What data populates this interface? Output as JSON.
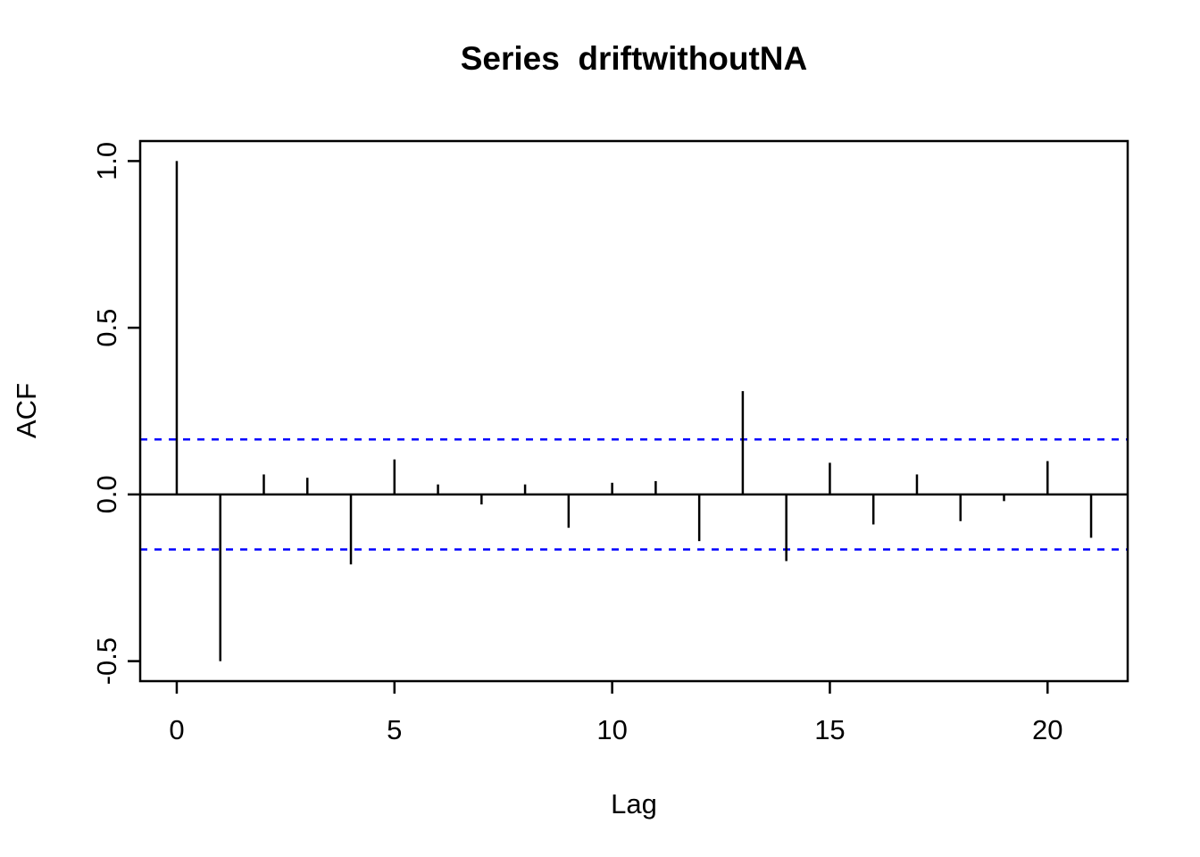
{
  "page": {
    "background": "#ffffff"
  },
  "chart_data": {
    "type": "bar",
    "subtype": "acf-stem-plot",
    "title": "Series  driftwithoutNA",
    "xlabel": "Lag",
    "ylabel": "ACF",
    "x": [
      0,
      1,
      2,
      3,
      4,
      5,
      6,
      7,
      8,
      9,
      10,
      11,
      12,
      13,
      14,
      15,
      16,
      17,
      18,
      19,
      20,
      21
    ],
    "values": [
      1.0,
      -0.5,
      0.06,
      0.05,
      -0.21,
      0.105,
      0.03,
      -0.03,
      0.03,
      -0.1,
      0.035,
      0.04,
      -0.14,
      0.31,
      -0.2,
      0.095,
      -0.09,
      0.06,
      -0.08,
      -0.02,
      0.1,
      -0.13
    ],
    "conf_bounds": {
      "upper": 0.165,
      "lower": -0.165,
      "line_style": "dashed",
      "color": "#0000ff"
    },
    "series_color": "#000000",
    "xlim": [
      -0.84,
      21.84
    ],
    "ylim": [
      -0.56,
      1.06
    ],
    "x_ticks": {
      "values": [
        0,
        5,
        10,
        15,
        20
      ],
      "labels": [
        "0",
        "5",
        "10",
        "15",
        "20"
      ]
    },
    "y_ticks": {
      "values": [
        1.0,
        0.5,
        0.0,
        -0.5
      ],
      "labels": [
        "1.0",
        "0.5",
        "0.0",
        "-0.5"
      ]
    },
    "grid": false,
    "legend": null
  }
}
